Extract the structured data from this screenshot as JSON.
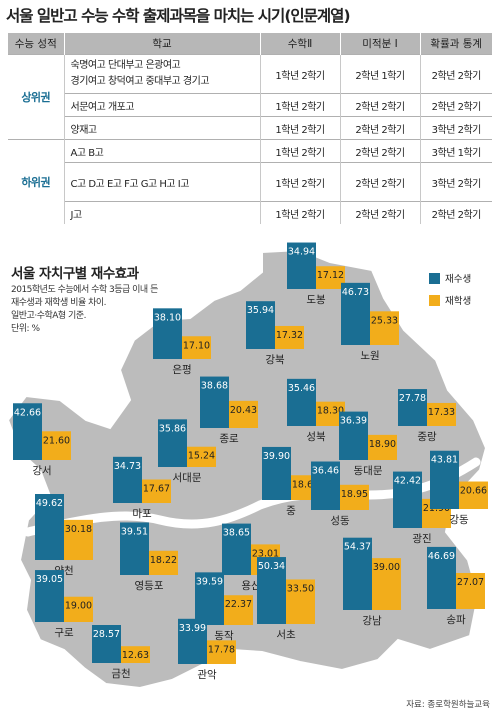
{
  "title": "서울 일반고 수능 수학 출제과목을 마치는 시기(인문계열)",
  "table": {
    "headers": [
      "수능 성적",
      "학교",
      "수학Ⅱ",
      "미적분 Ⅰ",
      "확률과 통계"
    ],
    "groups": [
      {
        "rank": "상위권",
        "rows": [
          {
            "school": [
              "숙명여고 단대부고 은광여고",
              "경기여고 창덕여고 중대부고 경기고"
            ],
            "math2": "1학년 2학기",
            "calc1": "2학년 1학기",
            "prob": "2학년 2학기"
          },
          {
            "school": [
              "서문여고 개포고"
            ],
            "math2": "1학년 2학기",
            "calc1": "2학년 2학기",
            "prob": "2학년 2학기"
          },
          {
            "school": [
              "양재고"
            ],
            "math2": "1학년 2학기",
            "calc1": "2학년 2학기",
            "prob": "3학년 2학기"
          }
        ]
      },
      {
        "rank": "하위권",
        "rows": [
          {
            "school": [
              "A고 B고"
            ],
            "math2": "1학년 2학기",
            "calc1": "2학년 2학기",
            "prob": "3학년 1학기"
          },
          {
            "school": [
              "C고 D고 E고 F고 G고 H고 I고"
            ],
            "math2": "1학년 2학기",
            "calc1": "2학년 2학기",
            "prob": "3학년 2학기"
          },
          {
            "school": [
              "J고"
            ],
            "math2": "1학년 2학기",
            "calc1": "2학년 2학기",
            "prob": "2학년 2학기"
          }
        ]
      }
    ]
  },
  "map_title": "서울 자치구별 재수효과",
  "map_note": [
    "2015학년도 수능에서 수학 3등급 이내 든",
    "재수생과 재학생 비율 차이.",
    "일반고·수학A형 기준.",
    "단위: %"
  ],
  "legend": {
    "repeat": "재수생",
    "current": "재학생"
  },
  "colors": {
    "repeat": "#1a6e93",
    "current": "#f2ad1b",
    "map_fill": "#bcbcbc",
    "map_stroke": "#ffffff"
  },
  "source": "자료: 종로학원하늘교육",
  "chart_data": {
    "type": "bar",
    "title": "서울 자치구별 재수효과",
    "unit": "%",
    "series_names": [
      "재수생",
      "재학생"
    ],
    "categories": [
      "도봉",
      "강북",
      "노원",
      "은평",
      "성북",
      "종로",
      "중랑",
      "강서",
      "서대문",
      "동대문",
      "마포",
      "중",
      "성동",
      "광진",
      "강동",
      "양천",
      "영등포",
      "용산",
      "동작",
      "구로",
      "서초",
      "강남",
      "송파",
      "금천",
      "관악"
    ],
    "series": [
      {
        "name": "재수생",
        "values": [
          34.94,
          35.94,
          46.73,
          38.1,
          35.46,
          38.68,
          27.78,
          42.66,
          35.86,
          36.39,
          34.73,
          39.9,
          36.46,
          42.42,
          43.81,
          49.62,
          39.51,
          38.65,
          39.59,
          39.05,
          50.34,
          54.37,
          46.69,
          28.57,
          33.99
        ]
      },
      {
        "name": "재학생",
        "values": [
          17.12,
          17.32,
          25.33,
          17.1,
          18.3,
          20.43,
          17.33,
          21.6,
          15.24,
          18.9,
          17.67,
          18.6,
          18.95,
          21.9,
          20.66,
          30.18,
          18.22,
          23.01,
          22.37,
          19.0,
          33.5,
          39.0,
          27.07,
          12.63,
          17.78
        ]
      }
    ]
  }
}
